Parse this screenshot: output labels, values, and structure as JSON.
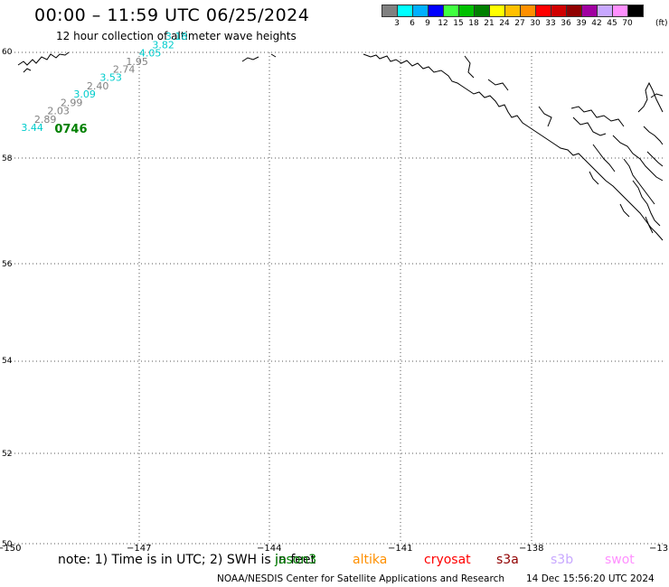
{
  "title": "00:00 – 11:59 UTC 06/25/2024",
  "subtitle": "12 hour collection of altimeter wave heights",
  "legend": {
    "colors": [
      "#808080",
      "#00ffff",
      "#00b0ff",
      "#0000ff",
      "#40ff40",
      "#00c000",
      "#008000",
      "#ffff00",
      "#ffc000",
      "#ff9000",
      "#ff0000",
      "#d00000",
      "#900000",
      "#a000a0",
      "#c8a8ff",
      "#ff90ff",
      "#000000"
    ],
    "ticks": [
      "3",
      "6",
      "9",
      "12",
      "15",
      "18",
      "21",
      "24",
      "27",
      "30",
      "33",
      "36",
      "39",
      "42",
      "45",
      "70"
    ],
    "unit": "(ft)"
  },
  "map": {
    "lat_labels": [
      "60",
      "58",
      "56",
      "54",
      "52",
      "50"
    ],
    "lon_labels": [
      "−150",
      "−147",
      "−144",
      "−141",
      "−138",
      "−13"
    ]
  },
  "track": {
    "time_label": "0746",
    "time_color": "#008000",
    "points": [
      {
        "lon": -149.6,
        "lat": 58.47,
        "value": "3.44",
        "color": "#00cccc"
      },
      {
        "lon": -149.3,
        "lat": 58.64,
        "value": "2.89",
        "color": "#808080"
      },
      {
        "lon": -149.0,
        "lat": 58.81,
        "value": "2.03",
        "color": "#808080"
      },
      {
        "lon": -148.7,
        "lat": 58.98,
        "value": "2.99",
        "color": "#808080"
      },
      {
        "lon": -148.4,
        "lat": 59.15,
        "value": "3.09",
        "color": "#00cccc"
      },
      {
        "lon": -148.1,
        "lat": 59.32,
        "value": "2.40",
        "color": "#808080"
      },
      {
        "lon": -147.8,
        "lat": 59.49,
        "value": "3.53",
        "color": "#00cccc"
      },
      {
        "lon": -147.5,
        "lat": 59.66,
        "value": "2.74",
        "color": "#808080"
      },
      {
        "lon": -147.2,
        "lat": 59.82,
        "value": "1.95",
        "color": "#808080"
      },
      {
        "lon": -146.9,
        "lat": 59.99,
        "value": "4.05",
        "color": "#00cccc"
      },
      {
        "lon": -146.6,
        "lat": 60.16,
        "value": "3.82",
        "color": "#00cccc"
      },
      {
        "lon": -146.3,
        "lat": 60.33,
        "value": "3.18",
        "color": "#00cccc"
      }
    ]
  },
  "note": "note: 1) Time is in UTC; 2) SWH is in feet",
  "satellites": [
    {
      "name": "jason3",
      "color": "#008000"
    },
    {
      "name": "altika",
      "color": "#ff9000"
    },
    {
      "name": "cryosat",
      "color": "#ff0000"
    },
    {
      "name": "s3a",
      "color": "#900000"
    },
    {
      "name": "s3b",
      "color": "#c8a8ff"
    },
    {
      "name": "swot",
      "color": "#ff90ff"
    }
  ],
  "footer": "NOAA/NESDIS Center for Satellite Applications and Research",
  "footer_time": "14 Dec 15:56:20 UTC 2024"
}
